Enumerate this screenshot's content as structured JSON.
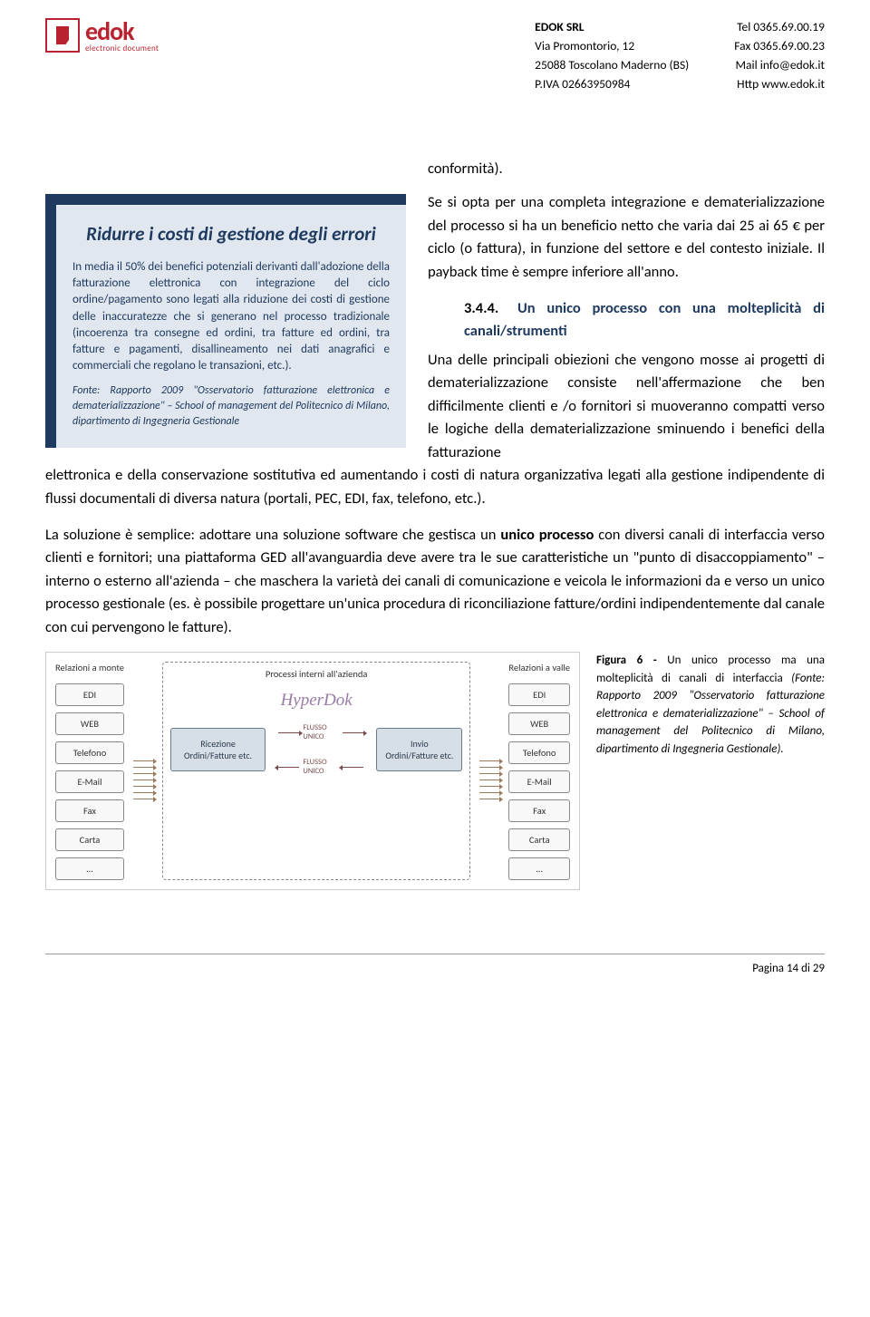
{
  "header": {
    "logo": {
      "brand": "edok",
      "tagline": "electronic document"
    },
    "company": {
      "name": "EDOK SRL",
      "addr1": "Via Promontorio, 12",
      "addr2": "25088 Toscolano Maderno  (BS)",
      "piva": "P.IVA 02663950984"
    },
    "contact": {
      "tel": "Tel 0365.69.00.19",
      "fax": "Fax 0365.69.00.23",
      "mail": "Mail info@edok.it",
      "http": "Http www.edok.it"
    }
  },
  "callout": {
    "title": "Ridurre i costi di gestione degli errori",
    "body": "In media il 50% dei benefici potenziali derivanti dall'adozione della fatturazione elettronica con integrazione del ciclo ordine/pagamento sono legati alla riduzione dei costi di gestione delle inaccuratezze che si generano nel processo tradizionale (incoerenza tra consegne ed ordini, tra fatture ed ordini, tra fatture e pagamenti, disallineamento nei dati anagrafici e commerciali che regolano le transazioni, etc.).",
    "source": "Fonte: Rapporto 2009 \"Osservatorio fatturazione elettronica e dematerializzazione\" – School of management del Politecnico di Milano, dipartimento di Ingegneria Gestionale"
  },
  "right": {
    "p0": "conformità).",
    "p1": "Se si opta per una completa integrazione e dematerializzazione del processo si ha un beneficio netto che varia dai 25 ai 65 € per ciclo (o fattura), in funzione del settore e del contesto iniziale. Il payback time è sempre inferiore all'anno.",
    "sub_num": "3.4.4.",
    "sub_title": "Un unico processo con una molteplicità di canali/strumenti",
    "p2": "Una delle principali obiezioni che vengono mosse ai progetti di dematerializzazione consiste nell'affermazione che ben difficilmente clienti e /o fornitori si muoveranno compatti verso le logiche della dematerializzazione sminuendo i benefici della fatturazione"
  },
  "fullpara1": "elettronica e della conservazione sostitutiva ed aumentando i costi di natura organizzativa legati alla gestione indipendente di flussi documentali di diversa natura (portali, PEC, EDI, fax, telefono, etc.).",
  "fullpara2_a": "La soluzione è semplice: adottare una soluzione software che gestisca un ",
  "fullpara2_bold": "unico processo",
  "fullpara2_b": " con diversi canali di interfaccia verso clienti e fornitori; una piattaforma GED all'avanguardia deve avere tra le sue caratteristiche un \"punto di disaccoppiamento\" – interno o esterno all'azienda – che maschera la varietà dei canali di comunicazione  e veicola le informazioni da e verso un unico processo gestionale (es. è possibile progettare un'unica procedura di riconciliazione fatture/ordini indipendentemente dal canale con cui pervengono le fatture).",
  "diagram": {
    "col_left_label": "Relazioni a monte",
    "col_right_label": "Relazioni a valle",
    "center_label": "Processi interni all'azienda",
    "nodes": [
      "EDI",
      "WEB",
      "Telefono",
      "E-Mail",
      "Fax",
      "Carta",
      "…"
    ],
    "hyperdok": "HyperDok",
    "proc_left": "Ricezione Ordini/Fatture etc.",
    "proc_right": "Invio Ordini/Fatture etc.",
    "flow_label": "FLUSSO UNICO",
    "colors": {
      "border": "#888888",
      "node_bg": "#f8f8f8",
      "proc_bg": "#d6dfe6",
      "proc_border": "#6a7a8a",
      "hyperdok_color": "#9a7aa6",
      "arrow_color": "#7a4a4a"
    }
  },
  "figure_caption": {
    "bold": "Figura 6 -",
    "text1": " Un unico processo ma una molteplicità di canali di interfaccia ",
    "italic": "(Fonte: Rapporto 2009 \"Osservatorio fatturazione elettronica e dematerializzazione\" – School of management del Politecnico di Milano, dipartimento di Ingegneria Gestionale)."
  },
  "footer": {
    "page": "Pagina 14 di 29"
  }
}
